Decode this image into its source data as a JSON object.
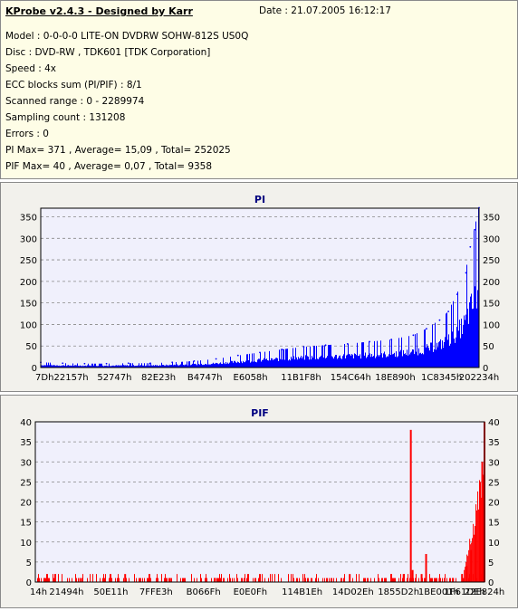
{
  "header": {
    "title": "KProbe v2.4.3 - Designed by Karr",
    "date": "Date : 21.07.2005 16:12:17",
    "lines": [
      "Model : 0-0-0-0 LITE-ON DVDRW SOHW-812S  US0Q",
      "Disc : DVD-RW , TDK601 [TDK Corporation]",
      "Speed : 4x",
      "ECC blocks sum (PI/PIF) : 8/1",
      "Scanned range : 0 - 2289974",
      "Sampling count : 131208",
      "Errors : 0",
      "PI Max= 371 , Average= 15,09 , Total= 252025",
      "PIF Max= 40 , Average= 0,07 , Total= 9358"
    ]
  },
  "chart_data": [
    {
      "type": "area",
      "title": "PI",
      "color": "#0000ff",
      "ylim": [
        0,
        370
      ],
      "yticks": [
        0,
        50,
        100,
        150,
        200,
        250,
        300,
        350
      ],
      "xlim": [
        0,
        1
      ],
      "xtick_labels": [
        "7Dh",
        "22157h",
        "52747h",
        "82E23h",
        "B4747h",
        "E6058h",
        "11B1F8h",
        "154C64h",
        "18E890h",
        "1C8345h",
        "202234h"
      ],
      "xtick_positions": [
        0,
        0.0694,
        0.1682,
        0.2688,
        0.3744,
        0.4785,
        0.594,
        0.7073,
        0.8089,
        0.9145,
        1.0
      ],
      "grid": true,
      "series": [
        {
          "x": [
            0,
            0.05,
            0.1,
            0.15,
            0.2,
            0.25,
            0.3,
            0.35,
            0.4,
            0.45,
            0.5,
            0.55,
            0.6,
            0.65,
            0.7,
            0.75,
            0.8,
            0.85,
            0.88,
            0.91,
            0.93,
            0.95,
            0.97,
            0.98,
            0.99,
            1.0
          ],
          "values": [
            12,
            10,
            9,
            9,
            10,
            10,
            12,
            15,
            20,
            28,
            35,
            42,
            48,
            52,
            55,
            60,
            65,
            75,
            90,
            110,
            130,
            170,
            220,
            280,
            320,
            371
          ]
        }
      ]
    },
    {
      "type": "bar",
      "title": "PIF",
      "color": "#ff0000",
      "ylim": [
        0,
        40
      ],
      "yticks": [
        0,
        5,
        10,
        15,
        20,
        25,
        30,
        35,
        40
      ],
      "xlim": [
        0,
        1
      ],
      "xtick_labels": [
        "14h",
        "21494h",
        "50E11h",
        "7FFE3h",
        "B066Fh",
        "E0E0Fh",
        "114B1Eh",
        "14D02Eh",
        "1855D2h",
        "1BE001h",
        "1F61DEh",
        "22E824h"
      ],
      "xtick_positions": [
        0,
        0.0694,
        0.1682,
        0.2688,
        0.3744,
        0.4785,
        0.594,
        0.7073,
        0.8089,
        0.898,
        0.956,
        1.0
      ],
      "grid": true,
      "series": [
        {
          "x": [
            0.02,
            0.1,
            0.2,
            0.3,
            0.4,
            0.5,
            0.6,
            0.7,
            0.78,
            0.82,
            0.836,
            0.84,
            0.86,
            0.87,
            0.9,
            0.93,
            0.95,
            0.96,
            0.97,
            0.98,
            0.99,
            0.995,
            1.0
          ],
          "values": [
            1,
            1,
            2,
            1,
            1,
            2,
            1,
            2,
            1,
            2,
            38,
            3,
            2,
            7,
            1,
            1,
            2,
            4,
            8,
            14,
            25,
            30,
            40
          ]
        }
      ]
    }
  ]
}
